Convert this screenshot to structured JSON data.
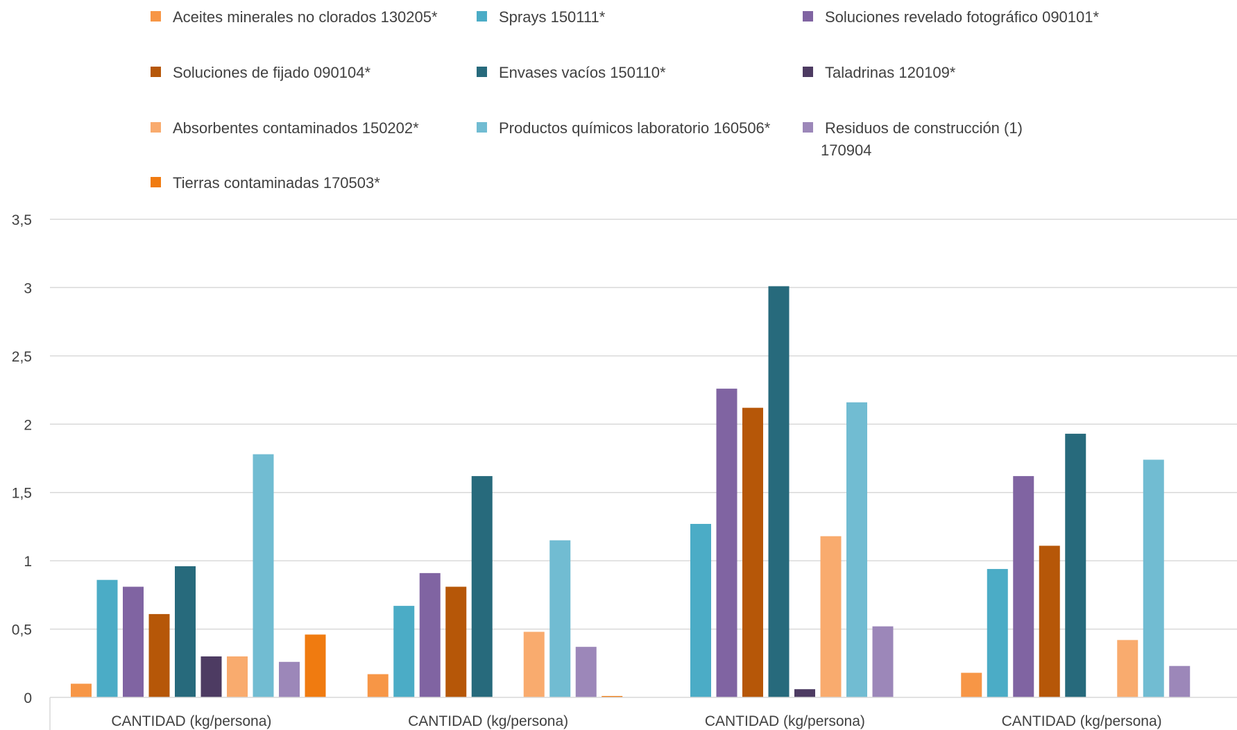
{
  "chart_data": {
    "type": "bar",
    "title": "",
    "xlabel": "",
    "ylabel": "",
    "ylim": [
      0,
      3.5
    ],
    "yticks": [
      "0",
      "0,5",
      "1",
      "1,5",
      "2",
      "2,5",
      "3",
      "3,5"
    ],
    "ytick_values": [
      0,
      0.5,
      1,
      1.5,
      2,
      2.5,
      3,
      3.5
    ],
    "grid": true,
    "legend_position": "top",
    "categories": [
      "CANTIDAD (kg/persona)",
      "CANTIDAD (kg/persona)",
      "CANTIDAD (kg/persona)",
      "CANTIDAD (kg/persona)"
    ],
    "series": [
      {
        "name": "Aceites minerales no clorados 130205*",
        "name_lines": [
          "Aceites minerales no clorados 130205*"
        ],
        "color": "#F79646",
        "values": [
          0.1,
          0.17,
          0,
          0.18
        ]
      },
      {
        "name": "Sprays 150111*",
        "name_lines": [
          "Sprays 150111*"
        ],
        "color": "#4BACC6",
        "values": [
          0.86,
          0.67,
          1.27,
          0.94
        ]
      },
      {
        "name": "Soluciones revelado fotográfico 090101*",
        "name_lines": [
          "Soluciones revelado fotográfico 090101*"
        ],
        "color": "#8064A2",
        "values": [
          0.81,
          0.91,
          2.26,
          1.62
        ]
      },
      {
        "name": "Soluciones de fijado 090104*",
        "name_lines": [
          "Soluciones de fijado 090104*"
        ],
        "color": "#B65708",
        "values": [
          0.61,
          0.81,
          2.12,
          1.11
        ]
      },
      {
        "name": "Envases vacíos  150110*",
        "name_lines": [
          "Envases vacíos  150110*"
        ],
        "color": "#276A7C",
        "values": [
          0.96,
          1.62,
          3.01,
          1.93
        ]
      },
      {
        "name": "Taladrinas 120109*",
        "name_lines": [
          "Taladrinas 120109*"
        ],
        "color": "#4D3B62",
        "values": [
          0.3,
          0,
          0.06,
          0
        ]
      },
      {
        "name": "Absorbentes contaminados 150202*",
        "name_lines": [
          "Absorbentes contaminados 150202*"
        ],
        "color": "#F9AB6E",
        "values": [
          0.3,
          0.48,
          1.18,
          0.42
        ]
      },
      {
        "name": "Productos químicos laboratorio 160506*",
        "name_lines": [
          "Productos químicos laboratorio 160506*"
        ],
        "color": "#71BCD2",
        "values": [
          1.78,
          1.15,
          2.16,
          1.74
        ]
      },
      {
        "name": "Residuos de construcción (1) 170904",
        "name_lines": [
          "Residuos de construcción (1)",
          "170904"
        ],
        "color": "#9C87B9",
        "values": [
          0.26,
          0.37,
          0.52,
          0.23
        ]
      },
      {
        "name": "Tierras contaminadas 170503*",
        "name_lines": [
          "Tierras contaminadas 170503*"
        ],
        "color": "#F07B10",
        "values": [
          0.46,
          0.01,
          0,
          0
        ]
      }
    ]
  }
}
